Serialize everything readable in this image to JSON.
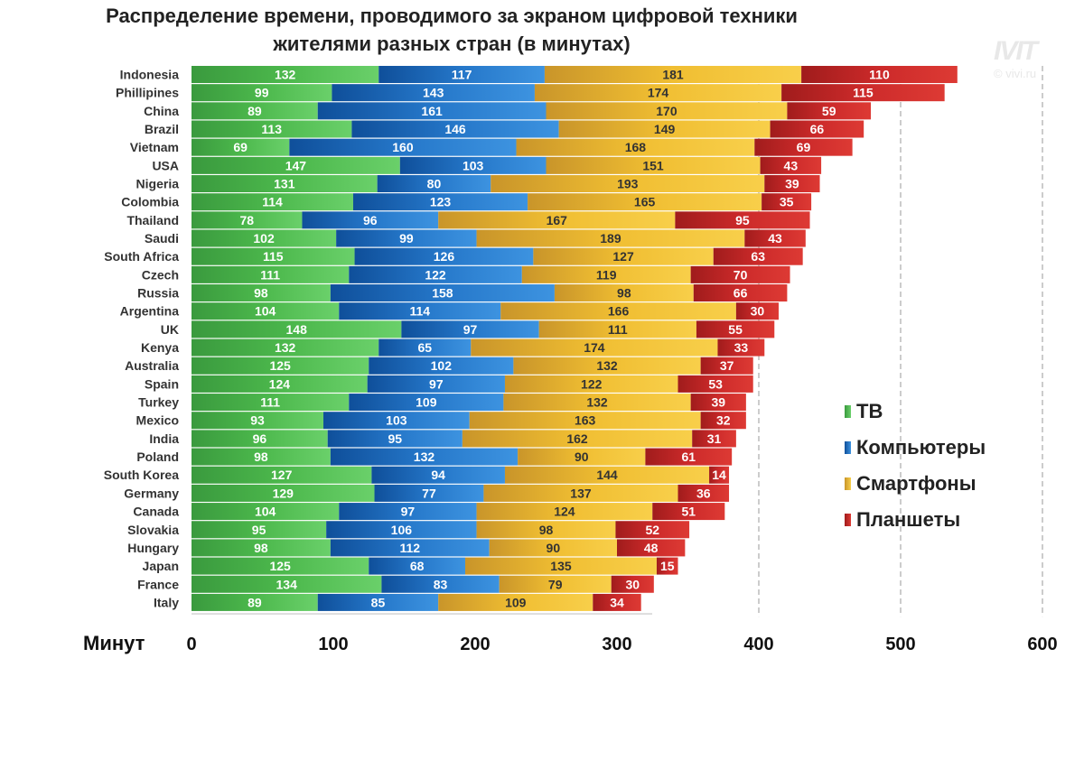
{
  "watermark": "© vivi.ru",
  "chart_data": {
    "type": "bar",
    "orientation": "horizontal",
    "stacked": true,
    "title_lines": [
      "Распределение времени, проводимого за экраном цифровой техники",
      "жителями разных стран (в минутах)"
    ],
    "xlabel": "Минут",
    "xlim": [
      0,
      600
    ],
    "xticks": [
      0,
      100,
      200,
      300,
      400,
      500,
      600
    ],
    "grid": "dashed vertical at 400, 500, 600",
    "legend_position": "right",
    "categories": [
      "Indonesia",
      "Phillipines",
      "China",
      "Brazil",
      "Vietnam",
      "USA",
      "Nigeria",
      "Colombia",
      "Thailand",
      "Saudi",
      "South Africa",
      "Czech",
      "Russia",
      "Argentina",
      "UK",
      "Kenya",
      "Australia",
      "Spain",
      "Turkey",
      "Mexico",
      "India",
      "Poland",
      "South Korea",
      "Germany",
      "Canada",
      "Slovakia",
      "Hungary",
      "Japan",
      "France",
      "Italy"
    ],
    "series": [
      {
        "name": "ТВ",
        "color": "#4cb84c",
        "values": [
          132,
          99,
          89,
          113,
          69,
          147,
          131,
          114,
          78,
          102,
          115,
          111,
          98,
          104,
          148,
          132,
          125,
          124,
          111,
          93,
          96,
          98,
          127,
          129,
          104,
          95,
          98,
          125,
          134,
          89
        ]
      },
      {
        "name": "Компьютеры",
        "color": "#2577c9",
        "values": [
          117,
          143,
          161,
          146,
          160,
          103,
          80,
          123,
          96,
          99,
          126,
          122,
          158,
          114,
          97,
          65,
          102,
          97,
          109,
          103,
          95,
          132,
          94,
          77,
          97,
          106,
          112,
          68,
          83,
          85
        ]
      },
      {
        "name": "Смартфоны",
        "color": "#f0be32",
        "values": [
          181,
          174,
          170,
          149,
          168,
          151,
          193,
          165,
          167,
          189,
          127,
          119,
          98,
          166,
          111,
          174,
          132,
          122,
          132,
          163,
          162,
          90,
          144,
          137,
          124,
          98,
          90,
          135,
          79,
          109
        ]
      },
      {
        "name": "Планшеты",
        "color": "#cc2a2a",
        "values": [
          110,
          115,
          59,
          66,
          69,
          43,
          39,
          35,
          95,
          43,
          63,
          70,
          66,
          30,
          55,
          33,
          37,
          53,
          39,
          32,
          31,
          61,
          14,
          36,
          51,
          52,
          48,
          15,
          30,
          34
        ]
      }
    ]
  }
}
